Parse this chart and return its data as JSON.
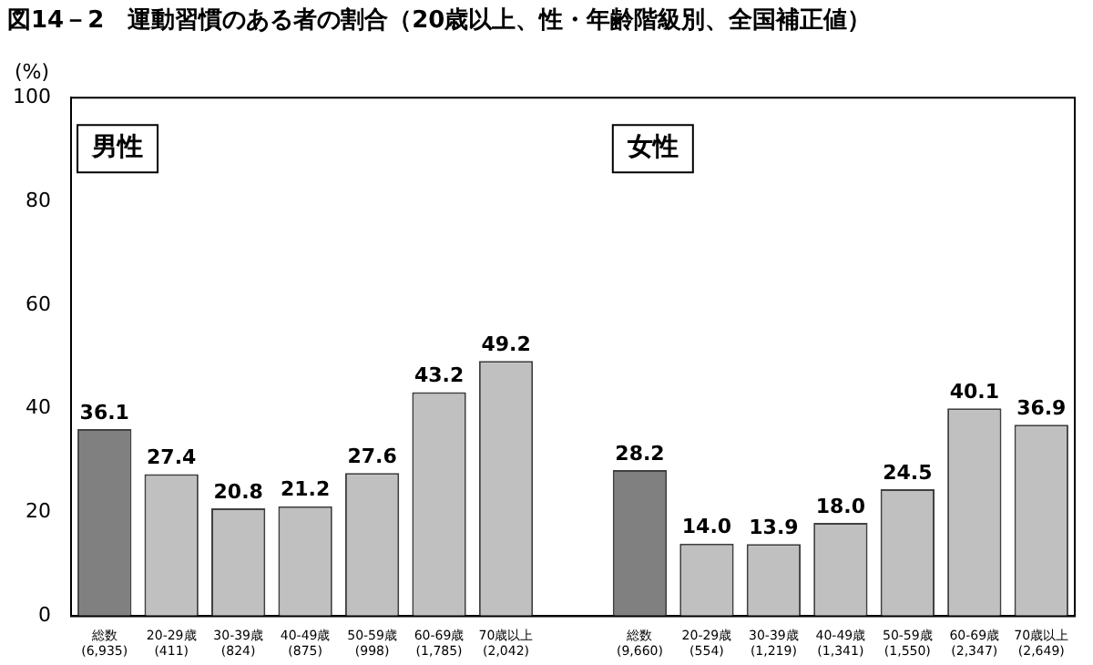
{
  "chart_data": {
    "type": "bar",
    "title": "図14－2　運動習慣のある者の割合（20歳以上、性・年齢階級別、全国補正値）",
    "ylabel": "(%)",
    "categories": [
      "総数\n(6,935)",
      "20-29歳\n(411)",
      "30-39歳\n(824)",
      "40-49歳\n(875)",
      "50-59歳\n(998)",
      "60-69歳\n(1,785)",
      "70歳以上\n(2,042)",
      null,
      "総数\n(9,660)",
      "20-29歳\n(554)",
      "30-39歳\n(1,219)",
      "40-49歳\n(1,341)",
      "50-59歳\n(1,550)",
      "60-69歳\n(2,347)",
      "70歳以上\n(2,649)"
    ],
    "values": [
      36.1,
      27.4,
      20.8,
      21.2,
      27.6,
      43.2,
      49.2,
      null,
      28.2,
      14.0,
      13.9,
      18.0,
      24.5,
      40.1,
      36.9
    ],
    "value_labels": [
      "36.1",
      "27.4",
      "20.8",
      "21.2",
      "27.6",
      "43.2",
      "49.2",
      null,
      "28.2",
      "14.0",
      "13.9",
      "18.0",
      "24.5",
      "40.1",
      "36.9"
    ],
    "colors": [
      "#808080",
      "#c0c0c0",
      "#c0c0c0",
      "#c0c0c0",
      "#c0c0c0",
      "#c0c0c0",
      "#c0c0c0",
      "#c0c0c0",
      "#808080",
      "#c0c0c0",
      "#c0c0c0",
      "#c0c0c0",
      "#c0c0c0",
      "#c0c0c0",
      "#c0c0c0"
    ],
    "annotations": [
      "男性",
      "女性"
    ],
    "ylim": [
      0,
      100
    ],
    "yticks": [
      0,
      20,
      40,
      60,
      80,
      100
    ],
    "grid": false,
    "legend": false
  }
}
